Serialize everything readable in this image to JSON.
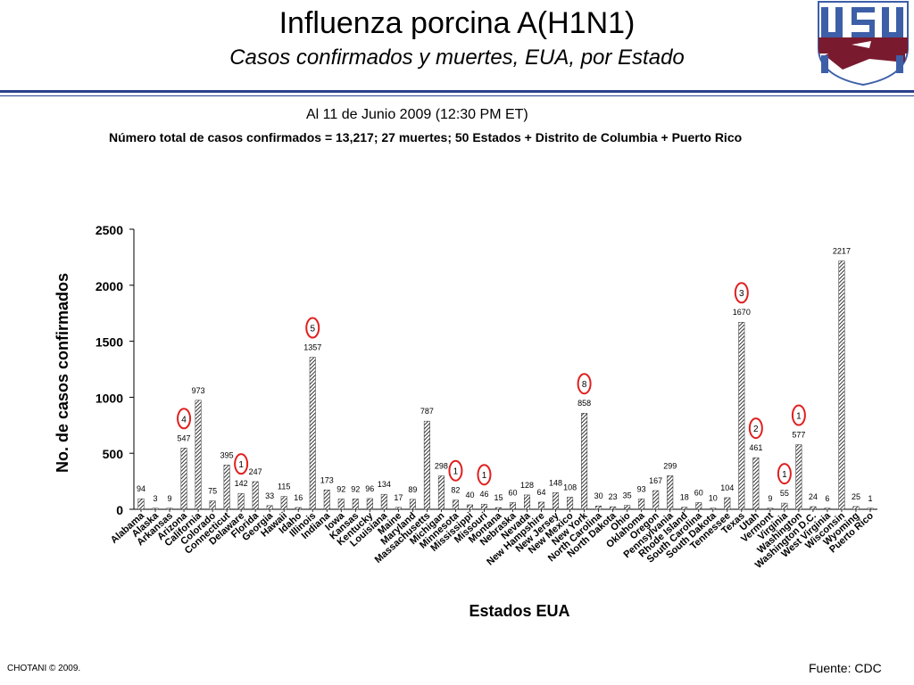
{
  "slide": {
    "title": "Influenza porcina A(H1N1)",
    "subtitle": "Casos confirmados y muertes, EUA, por Estado",
    "date_line": "Al 11 de Junio 2009 (12:30 PM ET)",
    "summary_line": "Número total de casos confirmados = 13,217; 27 muertes; 50 Estados + Distrito de Columbia + Puerto Rico",
    "footer_left": "CHOTANI © 2009.",
    "footer_right": "Fuente: CDC",
    "logo_letters": "USU"
  },
  "colors": {
    "rule": "#2c3f8c",
    "logo_blue": "#3d5fa8",
    "logo_red": "#7a1a2e",
    "death_circle": "#e02020",
    "bar_fill": "#777777"
  },
  "chart_data": {
    "type": "bar",
    "xlabel": "Estados EUA",
    "ylabel": "No. de casos confirmados",
    "ylim": [
      0,
      2500
    ],
    "yticks": [
      0,
      500,
      1000,
      1500,
      2000,
      2500
    ],
    "bar_pattern": "hatched",
    "grid": false,
    "categories": [
      "Alabama",
      "Alaska",
      "Arkansas",
      "Arizona",
      "California",
      "Colorado",
      "Connecticut",
      "Delaware",
      "Florida",
      "Georgia",
      "Hawaii",
      "Idaho",
      "Illinois",
      "Indiana",
      "Iowa",
      "Kansas",
      "Kentucky",
      "Louisiana",
      "Maine",
      "Maryland",
      "Massachusetts",
      "Michigan",
      "Minnesota",
      "Mississippi",
      "Missouri",
      "Montana",
      "Nebraska",
      "Nevada",
      "New Hampshire",
      "New Jersey",
      "New Mexico",
      "New York",
      "North Carolina",
      "North Dakota",
      "Ohio",
      "Oklahoma",
      "Oregon",
      "Pennsylvania",
      "Rhode Island",
      "South Carolina",
      "South Dakota",
      "Tennessee",
      "Texas",
      "Utah",
      "Vermont",
      "Virginia",
      "Washington",
      "Washington D.C.",
      "West Virginia",
      "Wisconsin",
      "Wyoming",
      "Puerto Rico"
    ],
    "values": [
      94,
      3,
      9,
      547,
      973,
      75,
      395,
      142,
      247,
      33,
      115,
      16,
      1357,
      173,
      92,
      92,
      96,
      134,
      17,
      89,
      787,
      298,
      82,
      40,
      46,
      15,
      60,
      128,
      64,
      148,
      108,
      858,
      30,
      23,
      35,
      93,
      167,
      299,
      18,
      60,
      10,
      104,
      1670,
      461,
      9,
      55,
      577,
      24,
      6,
      2217,
      25,
      1
    ],
    "value_labels": [
      "94",
      "3",
      "9",
      "547",
      "973",
      "75",
      "395",
      "142",
      "247",
      "33",
      "115",
      "16",
      "1357",
      "173",
      "92",
      "92",
      "96",
      "134",
      "17",
      "89",
      "787",
      "298",
      "82",
      "40",
      "46",
      "15",
      "60",
      "128",
      "64",
      "148",
      "108",
      "858",
      "30",
      "23",
      "35",
      "93",
      "167",
      "299",
      "18",
      "60",
      "10",
      "104",
      "1670",
      "461",
      "9",
      "55",
      "577",
      "24",
      "6",
      "2217",
      "25",
      "1"
    ],
    "deaths": [
      {
        "state": "Arizona",
        "count": 4
      },
      {
        "state": "Delaware",
        "count": 1
      },
      {
        "state": "Illinois",
        "count": 5
      },
      {
        "state": "Minnesota",
        "count": 1
      },
      {
        "state": "Missouri",
        "count": 1
      },
      {
        "state": "New York",
        "count": 8
      },
      {
        "state": "Texas",
        "count": 3
      },
      {
        "state": "Utah",
        "count": 2
      },
      {
        "state": "Virginia",
        "count": 1
      },
      {
        "state": "Washington",
        "count": 1
      }
    ]
  }
}
